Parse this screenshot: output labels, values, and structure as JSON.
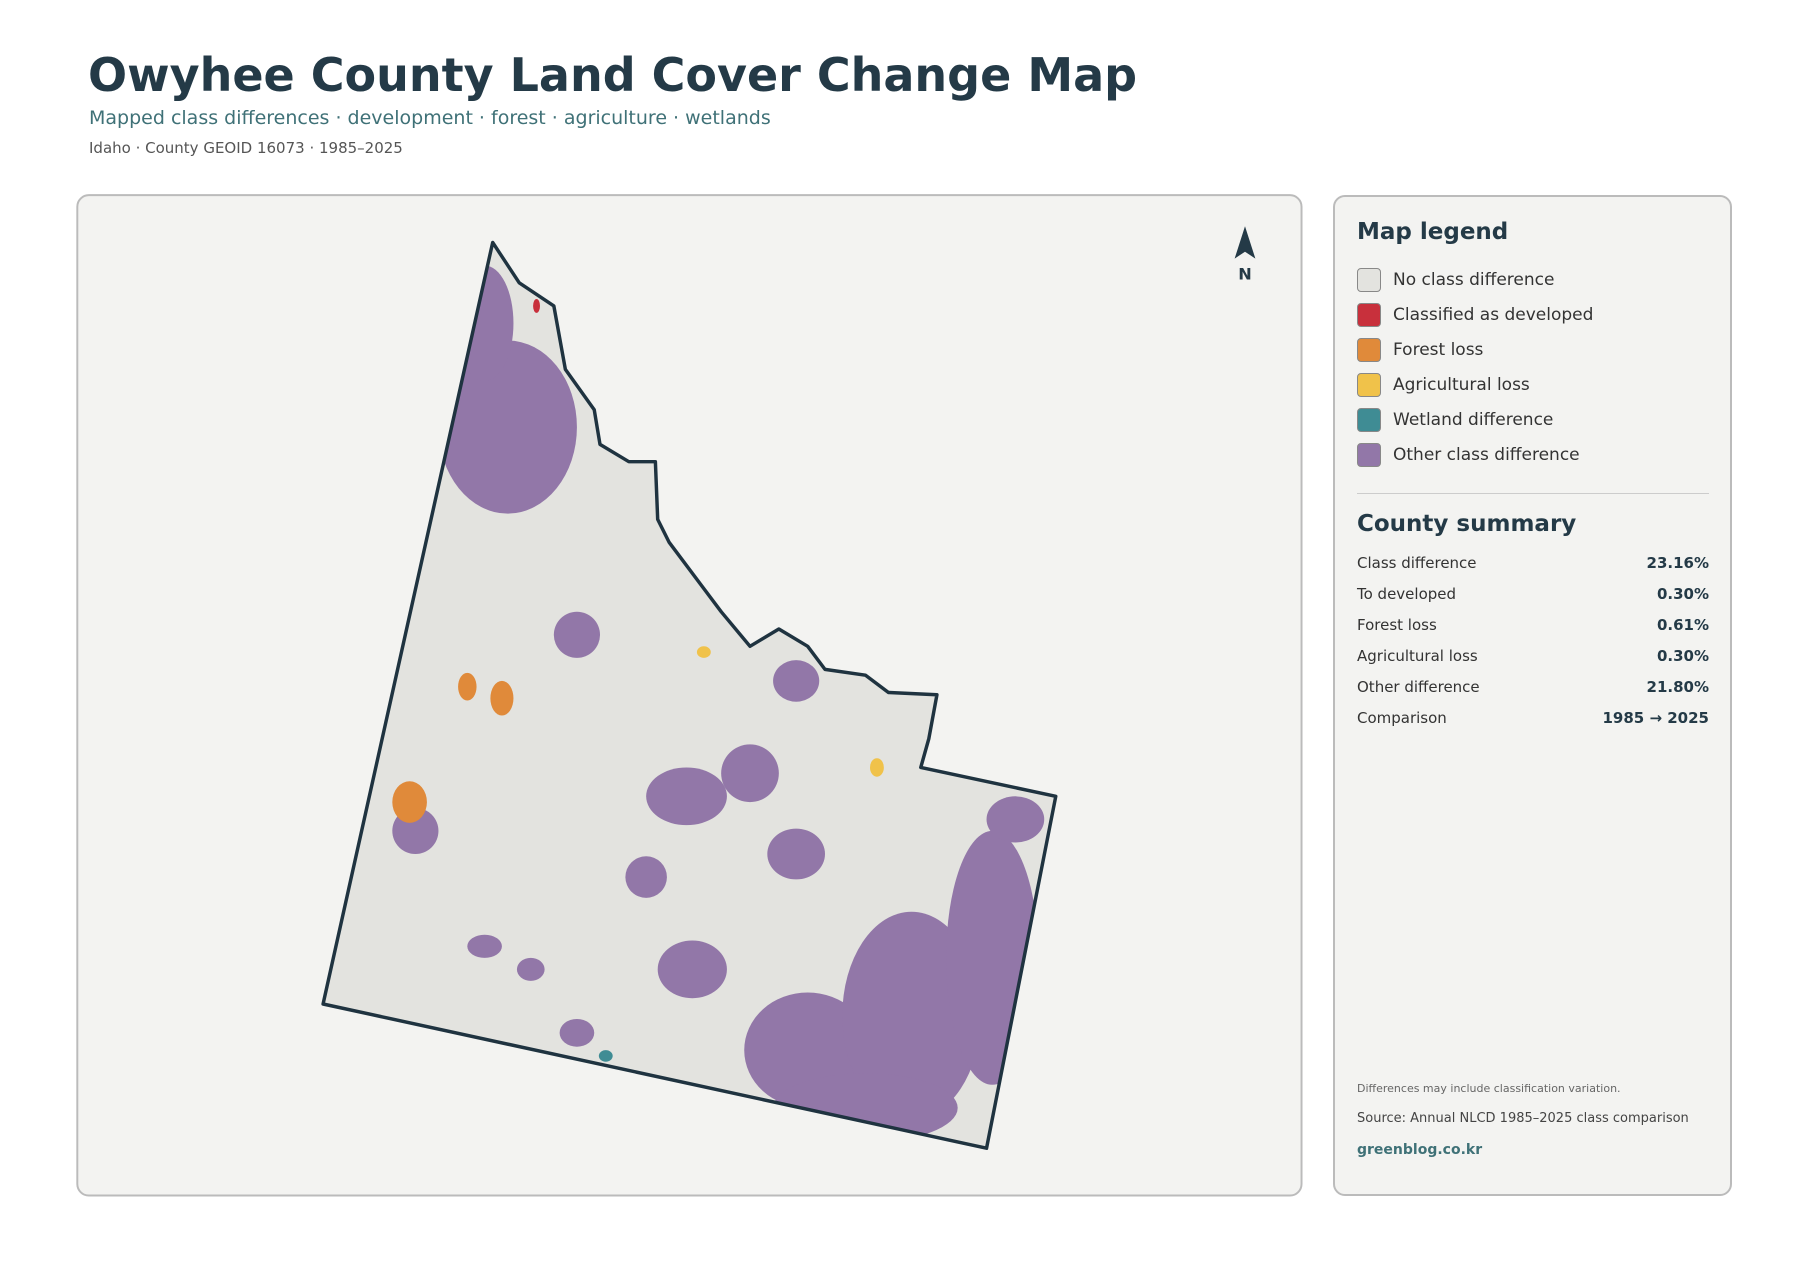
{
  "header": {
    "title": "Owyhee County Land Cover Change Map",
    "subtitle": "Mapped class differences · development · forest · agriculture · wetlands",
    "meta": "Idaho · County GEOID 16073 · 1985–2025"
  },
  "map": {
    "north_label": "N"
  },
  "legend": {
    "title": "Map legend",
    "items": [
      {
        "label": "No class difference",
        "color": "#e3e3df"
      },
      {
        "label": "Classified as developed",
        "color": "#c8303c"
      },
      {
        "label": "Forest loss",
        "color": "#e08a3a"
      },
      {
        "label": "Agricultural loss",
        "color": "#f0c24a"
      },
      {
        "label": "Wetland difference",
        "color": "#3f8c94"
      },
      {
        "label": "Other class difference",
        "color": "#9277a8"
      }
    ]
  },
  "summary": {
    "title": "County summary",
    "rows": [
      {
        "label": "Class difference",
        "value": "23.16%"
      },
      {
        "label": "To developed",
        "value": "0.30%"
      },
      {
        "label": "Forest loss",
        "value": "0.61%"
      },
      {
        "label": "Agricultural loss",
        "value": "0.30%"
      },
      {
        "label": "Other difference",
        "value": "21.80%"
      },
      {
        "label": "Comparison",
        "value": "1985 → 2025"
      }
    ]
  },
  "footer": {
    "note": "Differences may include classification variation.",
    "source": "Source: Annual NLCD 1985–2025 class comparison",
    "site": "greenblog.co.kr"
  }
}
